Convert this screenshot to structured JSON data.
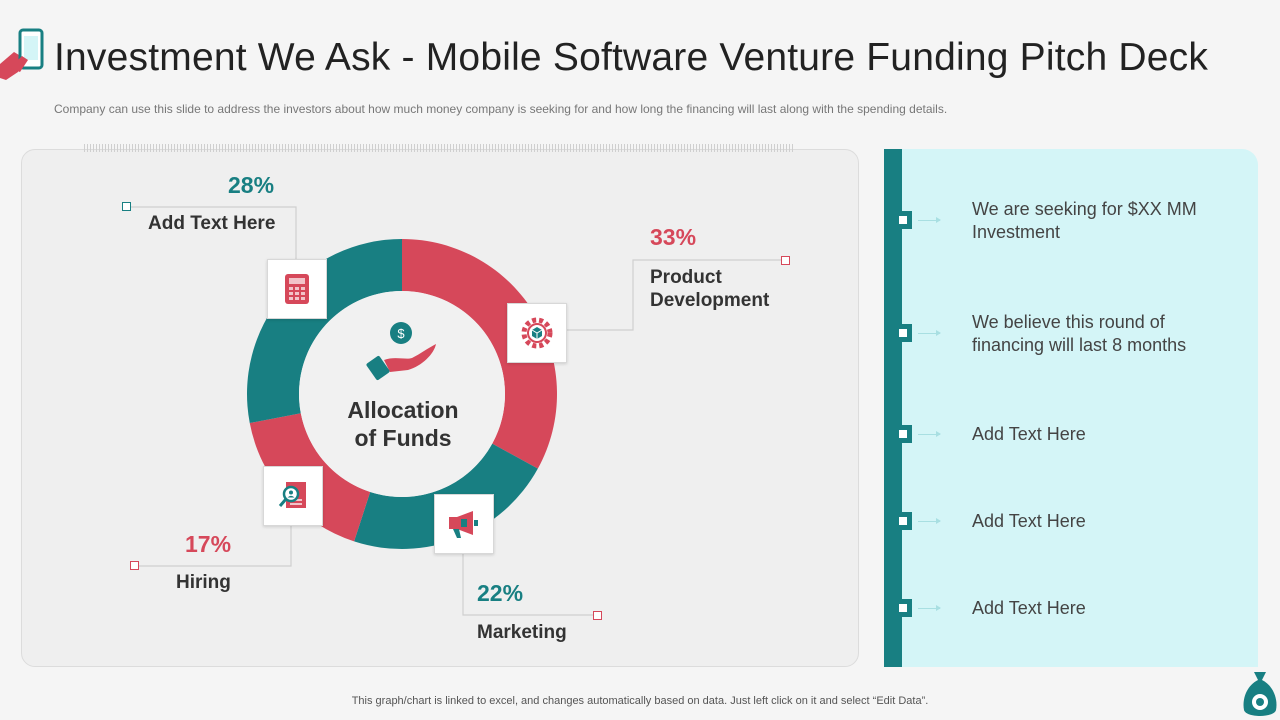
{
  "header": {
    "title": "Investment We Ask - Mobile Software Venture Funding Pitch Deck",
    "subtitle": "Company can use this slide to address the investors about how much money company is seeking for and how long the financing will last along with the spending details."
  },
  "chart_data": {
    "type": "pie",
    "center_label_line1": "Allocation",
    "center_label_line2": "of Funds",
    "segments": [
      {
        "label_line1": "Product",
        "label_line2": "Development",
        "percent_text": "33%",
        "value": 33,
        "color": "#d6485a"
      },
      {
        "label_line1": "Marketing",
        "label_line2": "",
        "percent_text": "22%",
        "value": 22,
        "color": "#187f82"
      },
      {
        "label_line1": "Hiring",
        "label_line2": "",
        "percent_text": "17%",
        "value": 17,
        "color": "#d6485a"
      },
      {
        "label_line1": "Add Text Here",
        "label_line2": "",
        "percent_text": "28%",
        "value": 28,
        "color": "#187f82"
      }
    ]
  },
  "icons": {
    "product_development": "gear-box-icon",
    "marketing": "megaphone-icon",
    "hiring": "resume-search-icon",
    "other": "calculator-icon",
    "center": "hand-coin-icon"
  },
  "right_panel": {
    "items": [
      {
        "text": "We are seeking for $XX MM Investment"
      },
      {
        "text": "We believe this round of financing will last 8 months"
      },
      {
        "text": "Add Text Here"
      },
      {
        "text": "Add Text Here"
      },
      {
        "text": "Add Text Here"
      }
    ]
  },
  "colors": {
    "teal": "#187f82",
    "red": "#d6485a",
    "light_cyan": "#d4f5f7"
  },
  "footer": {
    "note": "This graph/chart is linked to excel, and changes automatically based on data. Just left click on it and select “Edit Data”."
  }
}
